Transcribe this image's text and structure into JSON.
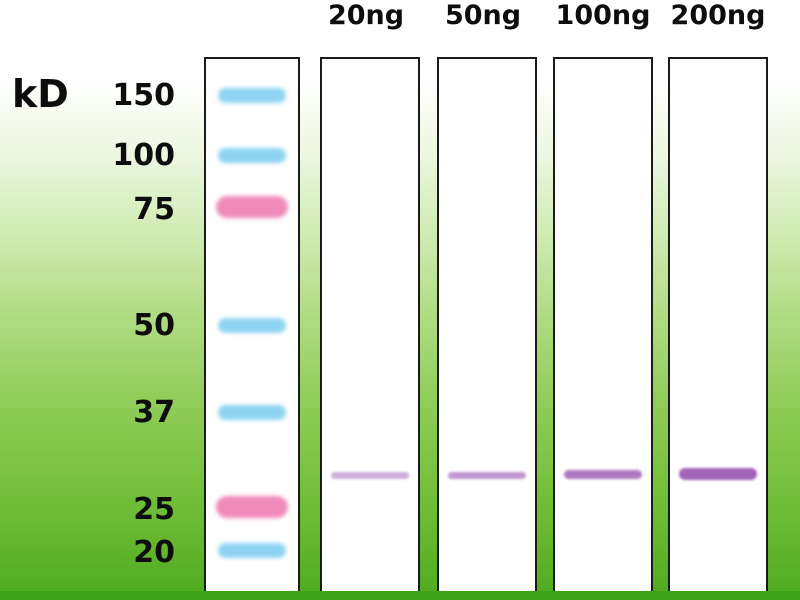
{
  "figure": {
    "type": "western-blot",
    "unit_label": "kD",
    "ladder_bands": [
      {
        "label": "150",
        "color": "blue"
      },
      {
        "label": "100",
        "color": "blue"
      },
      {
        "label": "75",
        "color": "pink"
      },
      {
        "label": "50",
        "color": "blue"
      },
      {
        "label": "37",
        "color": "blue"
      },
      {
        "label": "25",
        "color": "pink"
      },
      {
        "label": "20",
        "color": "blue"
      }
    ],
    "sample_lanes": [
      {
        "label": "20ng",
        "band_intensity": "faint"
      },
      {
        "label": "50ng",
        "band_intensity": "light"
      },
      {
        "label": "100ng",
        "band_intensity": "medium"
      },
      {
        "label": "200ng",
        "band_intensity": "strong"
      }
    ],
    "target_band_position": "between 25 and 37 kD markers",
    "colors": {
      "ladder_blue": "#8ed4f2",
      "ladder_pink": "#f08ab8",
      "target_band_purple": "#a263b9",
      "background_green": "#5db228",
      "bottom_bar_green": "#3ba315",
      "lane_background": "#ffffff",
      "lane_border": "#1b1b1b",
      "text": "#0d0d0d"
    }
  }
}
